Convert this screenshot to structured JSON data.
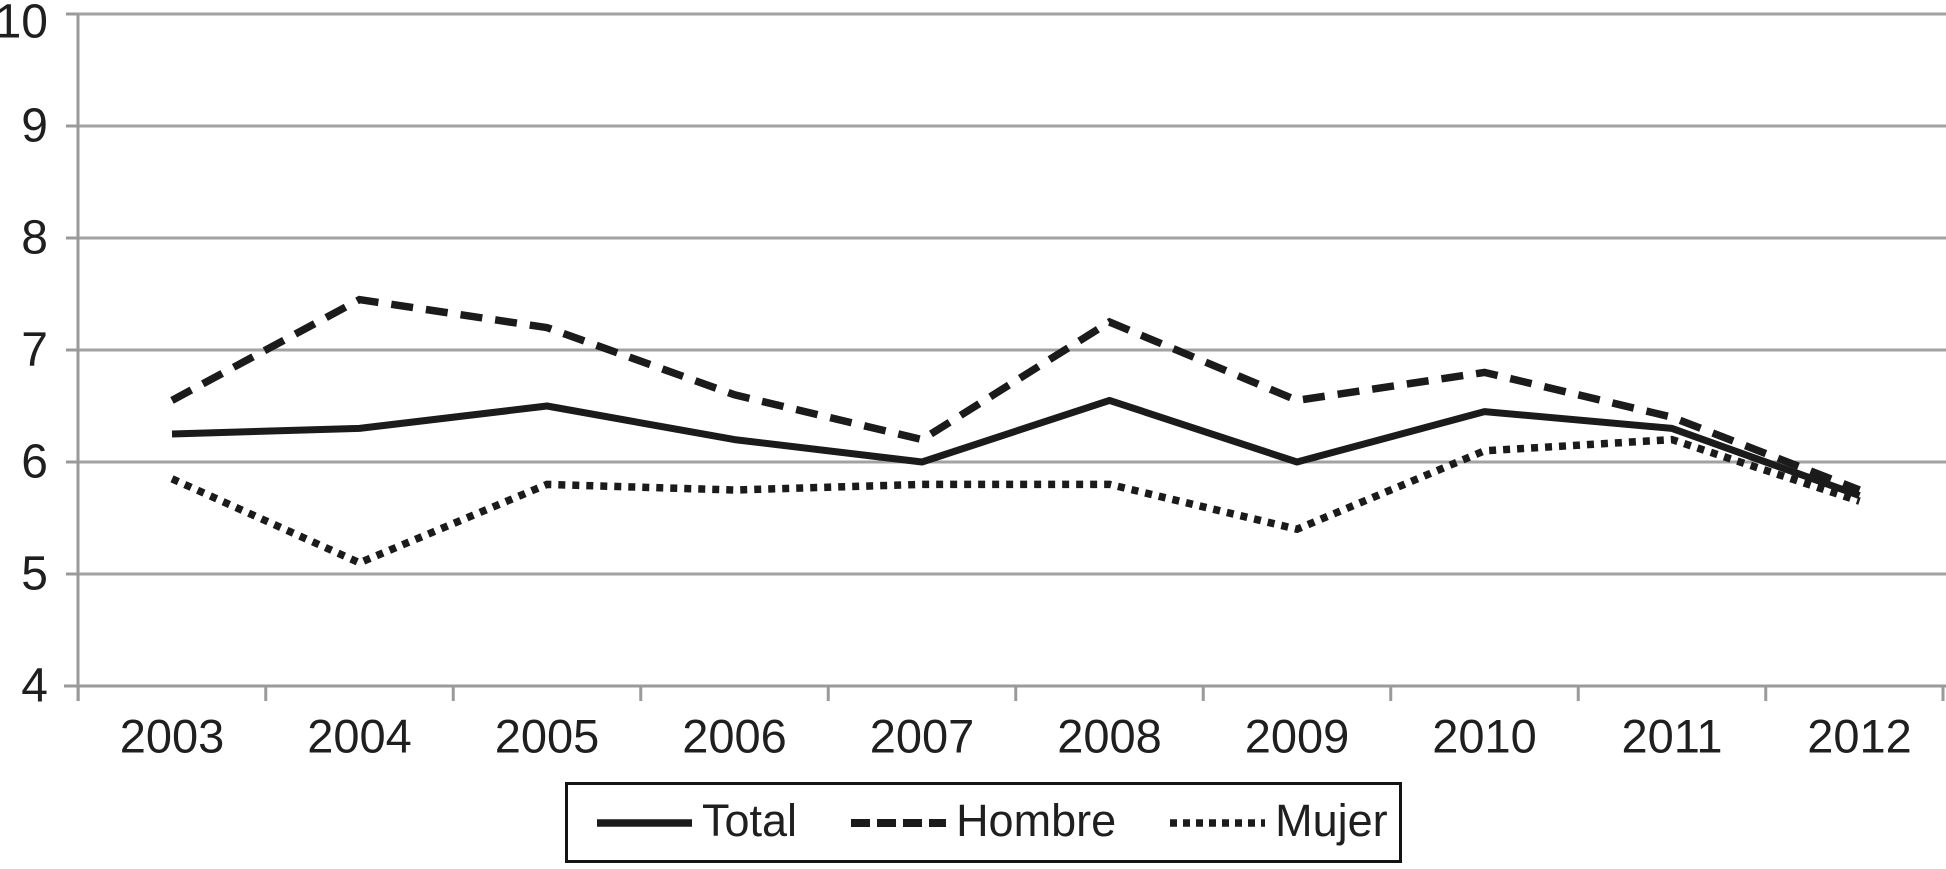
{
  "chart_data": {
    "type": "line",
    "title": "",
    "xlabel": "",
    "ylabel": "",
    "categories": [
      "2003",
      "2004",
      "2005",
      "2006",
      "2007",
      "2008",
      "2009",
      "2010",
      "2011",
      "2012"
    ],
    "series": [
      {
        "name": "Total",
        "line_style": "solid",
        "values": [
          6.25,
          6.3,
          6.5,
          6.2,
          6.0,
          6.55,
          6.0,
          6.45,
          6.3,
          5.7
        ]
      },
      {
        "name": "Hombre",
        "line_style": "dashed",
        "values": [
          6.55,
          7.45,
          7.2,
          6.6,
          6.2,
          7.25,
          6.55,
          6.8,
          6.4,
          5.75
        ]
      },
      {
        "name": "Mujer",
        "line_style": "dotted",
        "values": [
          5.85,
          5.1,
          5.8,
          5.75,
          5.8,
          5.8,
          5.4,
          6.1,
          6.2,
          5.65
        ]
      }
    ],
    "ylim": [
      4,
      10
    ],
    "y_ticks": [
      4,
      5,
      6,
      7,
      8,
      9,
      10
    ],
    "grid": "horizontal-only",
    "legend_position": "bottom-center-boxed",
    "colors": {
      "line": "#1b1b1b",
      "grid": "#a2a2a2",
      "axis": "#9a9a9a",
      "text": "#1f1f1f",
      "background": "#ffffff"
    }
  }
}
